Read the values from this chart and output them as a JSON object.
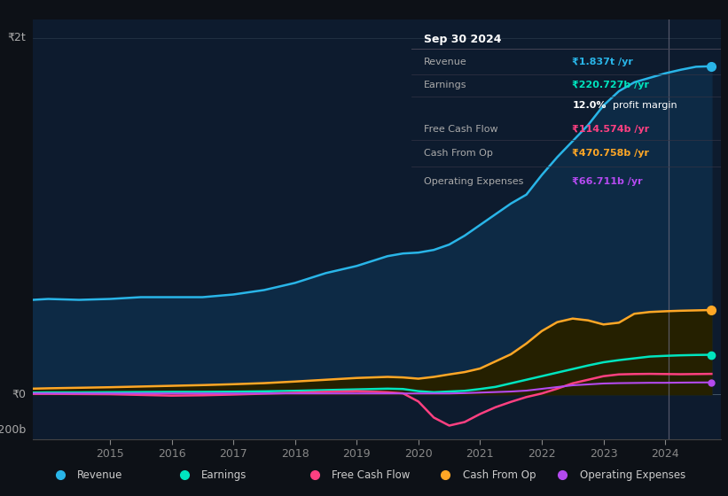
{
  "bg_color": "#0d1117",
  "chart_bg_color": "#0d1b2e",
  "years": [
    2013.75,
    2014.0,
    2014.5,
    2015.0,
    2015.5,
    2016.0,
    2016.5,
    2017.0,
    2017.5,
    2018.0,
    2018.5,
    2019.0,
    2019.5,
    2019.75,
    2020.0,
    2020.25,
    2020.5,
    2020.75,
    2021.0,
    2021.25,
    2021.5,
    2021.75,
    2022.0,
    2022.25,
    2022.5,
    2022.75,
    2023.0,
    2023.25,
    2023.5,
    2023.75,
    2024.0,
    2024.25,
    2024.5,
    2024.75
  ],
  "revenue": [
    530,
    535,
    530,
    535,
    545,
    545,
    545,
    560,
    585,
    625,
    680,
    720,
    775,
    790,
    795,
    810,
    840,
    890,
    950,
    1010,
    1070,
    1120,
    1230,
    1330,
    1420,
    1510,
    1620,
    1700,
    1750,
    1775,
    1800,
    1820,
    1837,
    1840
  ],
  "earnings": [
    10,
    11,
    11,
    12,
    13,
    14,
    14,
    15,
    17,
    20,
    24,
    28,
    32,
    30,
    18,
    12,
    16,
    20,
    30,
    42,
    62,
    82,
    102,
    122,
    142,
    162,
    180,
    192,
    202,
    212,
    216,
    219,
    221,
    222
  ],
  "free_cash_flow": [
    3,
    3,
    2,
    1,
    -3,
    -7,
    -5,
    -1,
    4,
    9,
    14,
    18,
    12,
    6,
    -40,
    -130,
    -175,
    -155,
    -110,
    -72,
    -42,
    -15,
    5,
    32,
    62,
    82,
    102,
    112,
    114,
    115,
    114,
    113,
    114,
    115
  ],
  "cash_from_op": [
    32,
    34,
    37,
    40,
    44,
    48,
    52,
    57,
    63,
    72,
    82,
    92,
    98,
    95,
    88,
    98,
    112,
    125,
    145,
    185,
    225,
    285,
    355,
    405,
    425,
    415,
    392,
    402,
    452,
    462,
    466,
    469,
    471,
    473
  ],
  "operating_expenses": [
    5,
    5,
    5,
    5,
    5,
    5,
    5,
    5,
    5,
    5,
    5,
    5,
    5,
    5,
    5,
    5,
    5,
    7,
    10,
    13,
    16,
    21,
    31,
    41,
    51,
    56,
    61,
    63,
    64,
    65,
    65,
    66,
    66.7,
    67
  ],
  "revenue_color": "#29b5e8",
  "earnings_color": "#00e5bf",
  "free_cash_flow_color": "#ff4081",
  "cash_from_op_color": "#ffa726",
  "operating_expenses_color": "#b44af0",
  "revenue_fill_color": "#0d2a45",
  "cash_from_op_fill_color": "#252000",
  "ylim_min": -250,
  "ylim_max": 2100,
  "info_box": {
    "title": "Sep 30 2024",
    "rows": [
      {
        "label": "Revenue",
        "value": "₹1.837t /yr",
        "value_color": "#29b5e8"
      },
      {
        "label": "Earnings",
        "value": "₹220.727b /yr",
        "value_color": "#00e5bf"
      },
      {
        "label": "",
        "value": "12.0% profit margin",
        "value_color": "#ffffff",
        "bold_part": "12.0%"
      },
      {
        "label": "Free Cash Flow",
        "value": "₹114.574b /yr",
        "value_color": "#ff4081"
      },
      {
        "label": "Cash From Op",
        "value": "₹470.758b /yr",
        "value_color": "#ffa726"
      },
      {
        "label": "Operating Expenses",
        "value": "₹66.711b /yr",
        "value_color": "#b44af0"
      }
    ]
  },
  "legend": [
    {
      "label": "Revenue",
      "color": "#29b5e8"
    },
    {
      "label": "Earnings",
      "color": "#00e5bf"
    },
    {
      "label": "Free Cash Flow",
      "color": "#ff4081"
    },
    {
      "label": "Cash From Op",
      "color": "#ffa726"
    },
    {
      "label": "Operating Expenses",
      "color": "#b44af0"
    }
  ],
  "xtick_positions": [
    2015,
    2016,
    2017,
    2018,
    2019,
    2020,
    2021,
    2022,
    2023,
    2024
  ],
  "separator_x": 2024.05
}
